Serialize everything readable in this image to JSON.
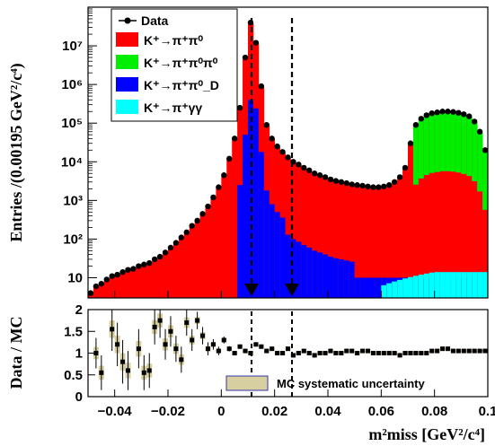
{
  "chart_data": [
    {
      "type": "histogram-stack",
      "ylabel": "Entries /(0.00195 GeV²/c⁴)",
      "ylim": [
        3,
        100000000
      ],
      "yscale": "log",
      "xlim": [
        -0.05,
        0.1
      ],
      "yticks": [
        "10",
        "10²",
        "10³",
        "10⁴",
        "10⁵",
        "10⁶",
        "10⁷"
      ],
      "signal_window": [
        0.01,
        0.026
      ],
      "legend_position": "top-left",
      "colors": {
        "k2pi": "#ff0000",
        "k3pi": "#00ee00",
        "k2pid": "#0000ff",
        "kpigg": "#00ffff",
        "data": "#000000"
      },
      "series": [
        {
          "name": "Data"
        },
        {
          "name": "K⁺→π⁺π⁰"
        },
        {
          "name": "K⁺→π⁺π⁰π⁰"
        },
        {
          "name": "K⁺→π⁺π⁰_D"
        },
        {
          "name": "K⁺→π⁺γγ"
        }
      ],
      "x": [
        -0.049,
        -0.047,
        -0.045,
        -0.043,
        -0.041,
        -0.039,
        -0.037,
        -0.035,
        -0.033,
        -0.031,
        -0.029,
        -0.027,
        -0.025,
        -0.023,
        -0.021,
        -0.019,
        -0.017,
        -0.015,
        -0.013,
        -0.011,
        -0.009,
        -0.007,
        -0.005,
        -0.003,
        -0.001,
        0.001,
        0.003,
        0.005,
        0.007,
        0.009,
        0.011,
        0.013,
        0.015,
        0.017,
        0.019,
        0.021,
        0.023,
        0.025,
        0.027,
        0.029,
        0.031,
        0.033,
        0.035,
        0.037,
        0.039,
        0.041,
        0.043,
        0.045,
        0.047,
        0.049,
        0.051,
        0.053,
        0.055,
        0.057,
        0.059,
        0.061,
        0.063,
        0.065,
        0.067,
        0.069,
        0.071,
        0.073,
        0.075,
        0.077,
        0.079,
        0.081,
        0.083,
        0.085,
        0.087,
        0.089,
        0.091,
        0.093,
        0.095,
        0.097,
        0.099
      ],
      "data_values": [
        4,
        6,
        7,
        9,
        11,
        12,
        14,
        16,
        17,
        20,
        22,
        24,
        30,
        35,
        45,
        60,
        80,
        110,
        150,
        220,
        300,
        450,
        700,
        1200,
        2200,
        4500,
        12000,
        40000,
        250000,
        5000000,
        40000000,
        12000000,
        900000,
        90000,
        40000,
        25000,
        18000,
        13000,
        10000,
        8500,
        7000,
        6000,
        5000,
        4500,
        4000,
        3500,
        3200,
        3000,
        2800,
        2600,
        2500,
        2400,
        2300,
        2200,
        2200,
        2300,
        2500,
        3000,
        4000,
        7000,
        30000,
        90000,
        130000,
        160000,
        180000,
        190000,
        200000,
        200000,
        195000,
        185000,
        170000,
        150000,
        110000,
        60000,
        20000
      ]
    },
    {
      "type": "scatter-errorbars",
      "ylabel": "Data / MC",
      "xlabel": "m²miss [GeV²/c⁴]",
      "xlim": [
        -0.05,
        0.1
      ],
      "ylim": [
        0,
        2
      ],
      "xticks": [
        "−0.04",
        "−0.02",
        "0",
        "0.02",
        "0.04",
        "0.06",
        "0.08",
        "0.1"
      ],
      "yticks": [
        "0",
        "0.5",
        "1",
        "1.5",
        "2"
      ],
      "legend": "MC systematic uncertainty",
      "legend_color": "#d8cfa0",
      "x": [
        -0.047,
        -0.045,
        -0.041,
        -0.039,
        -0.037,
        -0.035,
        -0.031,
        -0.029,
        -0.027,
        -0.025,
        -0.023,
        -0.021,
        -0.019,
        -0.017,
        -0.015,
        -0.013,
        -0.011,
        -0.009,
        -0.007,
        -0.005,
        -0.003,
        -0.001,
        0.001,
        0.003,
        0.005,
        0.007,
        0.009,
        0.011,
        0.013,
        0.015,
        0.017,
        0.019,
        0.021,
        0.023,
        0.025,
        0.027,
        0.029,
        0.031,
        0.033,
        0.035,
        0.037,
        0.039,
        0.041,
        0.043,
        0.045,
        0.047,
        0.049,
        0.051,
        0.053,
        0.055,
        0.057,
        0.059,
        0.061,
        0.063,
        0.065,
        0.067,
        0.069,
        0.071,
        0.073,
        0.075,
        0.077,
        0.079,
        0.081,
        0.083,
        0.085,
        0.087,
        0.089,
        0.091,
        0.093,
        0.095,
        0.097,
        0.099
      ],
      "values": [
        1.0,
        0.55,
        1.55,
        1.2,
        0.8,
        0.6,
        1.1,
        0.55,
        0.6,
        1.6,
        1.75,
        1.2,
        1.5,
        1.1,
        0.85,
        1.7,
        1.3,
        1.75,
        1.4,
        1.1,
        1.2,
        1.05,
        1.3,
        1.1,
        1.0,
        1.15,
        1.05,
        1.0,
        1.2,
        1.15,
        1.05,
        1.1,
        1.0,
        1.0,
        1.1,
        0.95,
        1.0,
        1.05,
        1.0,
        0.95,
        1.0,
        1.0,
        1.05,
        1.0,
        1.0,
        1.05,
        1.05,
        1.0,
        1.05,
        1.05,
        1.0,
        1.0,
        1.0,
        1.0,
        1.0,
        0.95,
        1.0,
        1.0,
        1.0,
        1.0,
        1.0,
        1.05,
        1.05,
        1.1,
        1.1,
        1.05,
        1.05,
        1.05,
        1.05,
        1.05,
        1.05,
        1.05
      ],
      "errors": [
        0.35,
        0.4,
        0.5,
        0.5,
        0.5,
        0.45,
        0.45,
        0.4,
        0.4,
        0.4,
        0.4,
        0.35,
        0.35,
        0.3,
        0.3,
        0.3,
        0.25,
        0.2,
        0.2,
        0.15,
        0.12,
        0.1,
        0.08,
        0.06,
        0.05,
        0.04,
        0.03,
        0.02,
        0.02,
        0.02,
        0.02,
        0.02,
        0.02,
        0.02,
        0.02,
        0.02,
        0.02,
        0.02,
        0.02,
        0.02,
        0.02,
        0.02,
        0.02,
        0.02,
        0.02,
        0.02,
        0.02,
        0.02,
        0.02,
        0.02,
        0.02,
        0.02,
        0.02,
        0.02,
        0.02,
        0.02,
        0.02,
        0.02,
        0.02,
        0.02,
        0.02,
        0.02,
        0.02,
        0.02,
        0.02,
        0.02,
        0.02,
        0.02,
        0.02,
        0.02,
        0.02,
        0.02
      ]
    }
  ]
}
